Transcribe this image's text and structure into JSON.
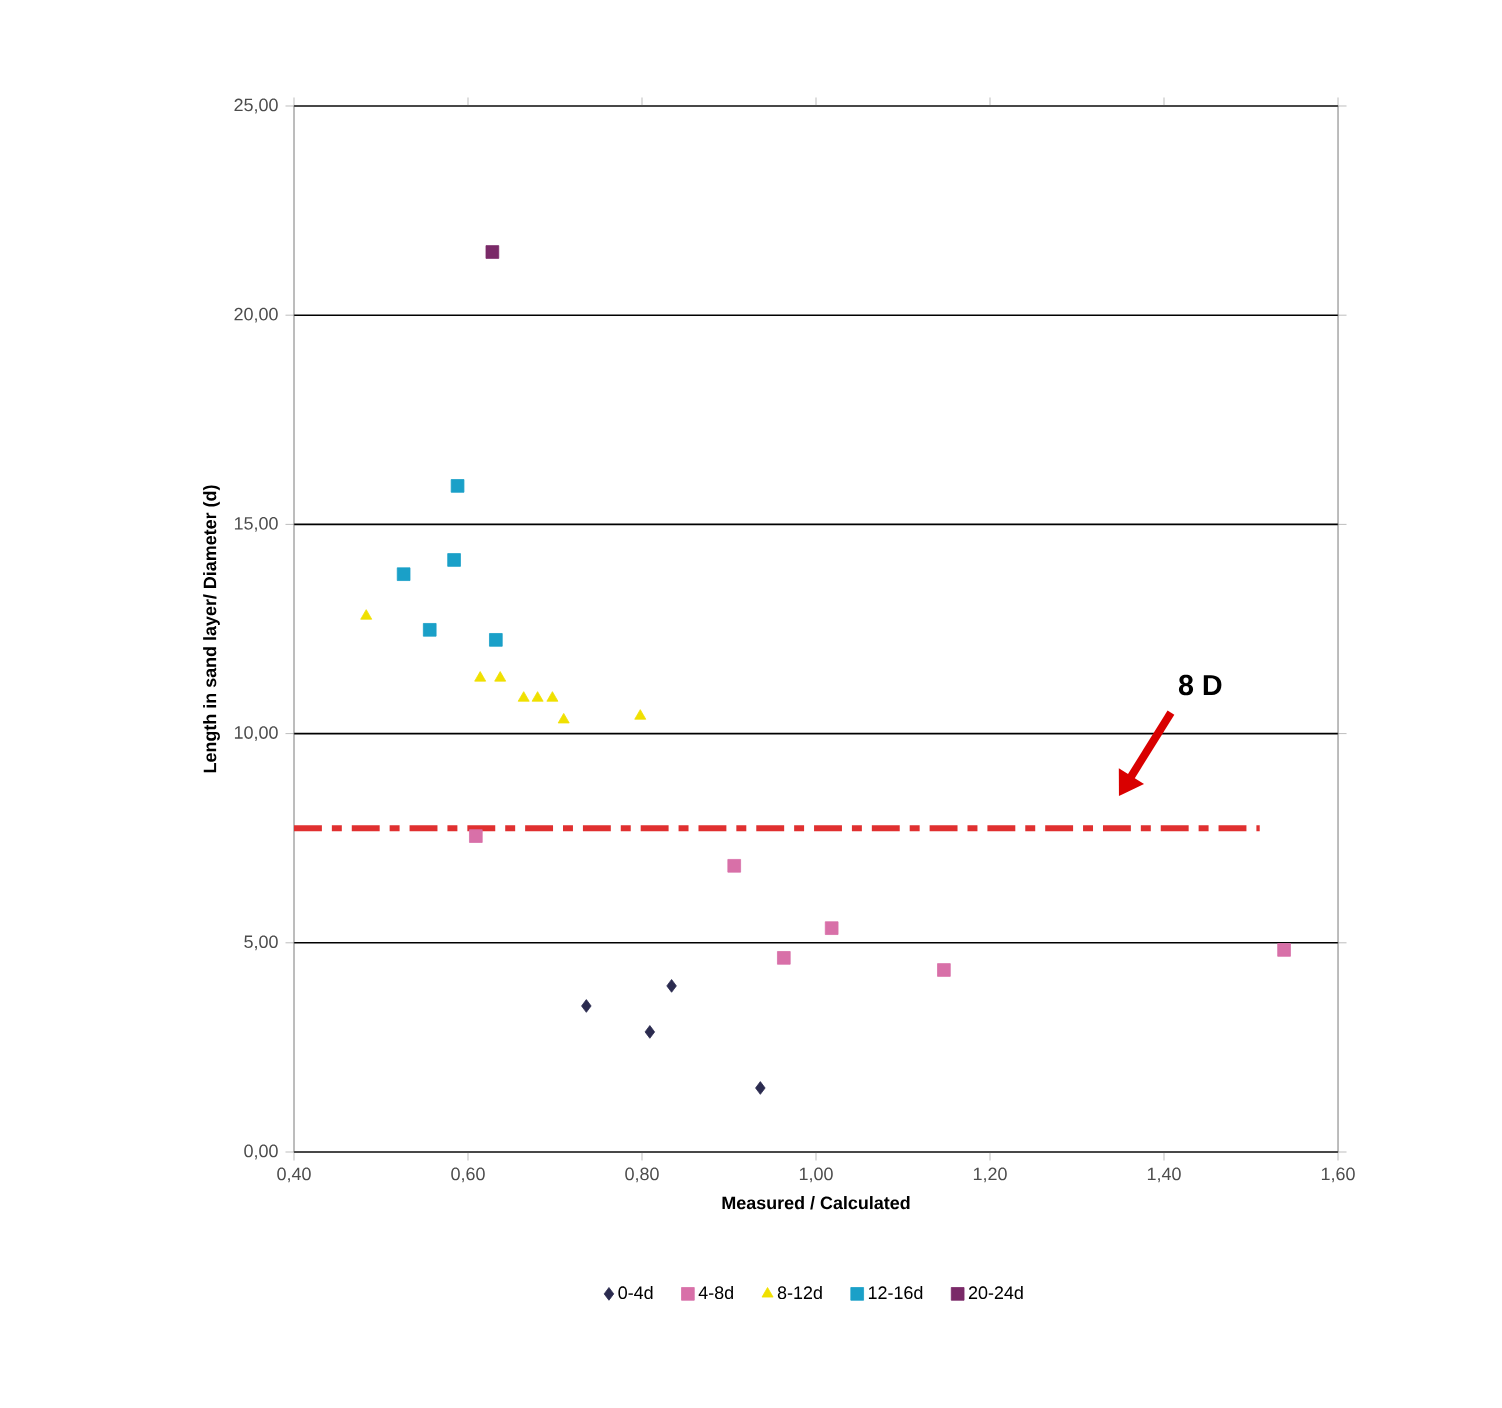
{
  "chart_data": {
    "type": "scatter",
    "xlabel": "Measured / Calculated",
    "ylabel": "Length in sand layer/ Diameter (d)",
    "xlim": [
      0.4,
      1.6
    ],
    "ylim": [
      0,
      25
    ],
    "xticks": [
      {
        "value": 0.4,
        "label": "0,40"
      },
      {
        "value": 0.6,
        "label": "0,60"
      },
      {
        "value": 0.8,
        "label": "0,80"
      },
      {
        "value": 1.0,
        "label": "1,00"
      },
      {
        "value": 1.2,
        "label": "1,20"
      },
      {
        "value": 1.4,
        "label": "1,40"
      },
      {
        "value": 1.6,
        "label": "1,60"
      }
    ],
    "yticks": [
      {
        "value": 0,
        "label": "0,00"
      },
      {
        "value": 5,
        "label": "5,00"
      },
      {
        "value": 10,
        "label": "10,00"
      },
      {
        "value": 15,
        "label": "15,00"
      },
      {
        "value": 20,
        "label": "20,00"
      },
      {
        "value": 25,
        "label": "25,00"
      }
    ],
    "grid": "y",
    "legend": "bottom",
    "series": [
      {
        "name": "0-4d",
        "color": "#2b2b4f",
        "marker": "diamond",
        "x": [
          0.736,
          0.809,
          0.834,
          0.936
        ],
        "values": [
          3.49,
          2.87,
          3.97,
          1.53
        ]
      },
      {
        "name": "4-8d",
        "color": "#d870a8",
        "marker": "square",
        "x": [
          0.609,
          0.906,
          0.963,
          1.018,
          1.147,
          1.538
        ],
        "values": [
          7.55,
          6.84,
          4.64,
          5.35,
          4.35,
          4.83
        ]
      },
      {
        "name": "8-12d",
        "color": "#f0e000",
        "marker": "triangle",
        "x": [
          0.483,
          0.614,
          0.637,
          0.664,
          0.68,
          0.697,
          0.71,
          0.798
        ],
        "values": [
          12.81,
          11.33,
          11.33,
          10.85,
          10.85,
          10.85,
          10.33,
          10.42
        ]
      },
      {
        "name": "12-16d",
        "color": "#1aa0c8",
        "marker": "square",
        "x": [
          0.526,
          0.556,
          0.584,
          0.588,
          0.632
        ],
        "values": [
          13.81,
          12.48,
          14.15,
          15.92,
          12.24
        ]
      },
      {
        "name": "20-24d",
        "color": "#7a2a68",
        "marker": "square",
        "x": [
          0.628
        ],
        "values": [
          21.51
        ]
      }
    ],
    "ref_lines": [
      {
        "axis": "y",
        "value": 7.74,
        "color": "#e03030",
        "line_style": "dashdotted"
      }
    ],
    "annotations": [
      "8 D"
    ]
  }
}
